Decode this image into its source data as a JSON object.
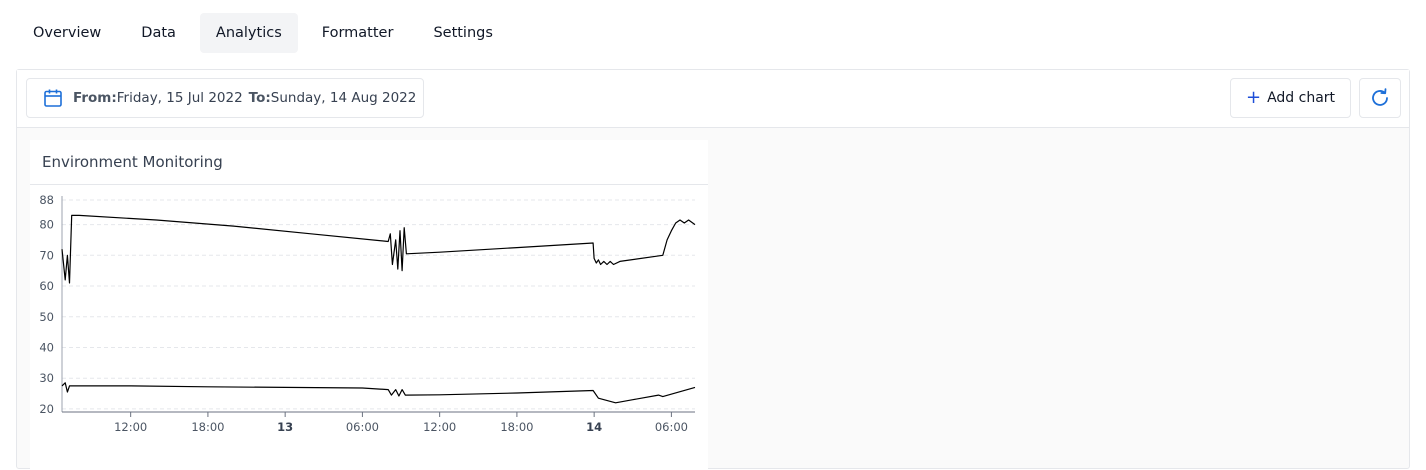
{
  "tabs": [
    {
      "label": "Overview",
      "active": false
    },
    {
      "label": "Data",
      "active": false
    },
    {
      "label": "Analytics",
      "active": true
    },
    {
      "label": "Formatter",
      "active": false
    },
    {
      "label": "Settings",
      "active": false
    }
  ],
  "toolbar": {
    "from_label": "From:",
    "from_value": "Friday, 15 Jul 2022",
    "to_label": "To:",
    "to_value": "Sunday, 14 Aug 2022",
    "add_chart_label": "Add chart",
    "calendar_icon": "calendar-icon",
    "refresh_icon": "refresh-icon",
    "accent_color": "#1d6fd8"
  },
  "chart_card": {
    "title": "Environment Monitoring"
  },
  "chart_data": {
    "type": "line",
    "title": "Environment Monitoring",
    "xlabel": "",
    "ylabel": "",
    "ylim": [
      19,
      88
    ],
    "yticks": [
      20,
      30,
      40,
      50,
      60,
      70,
      80,
      88
    ],
    "grid": true,
    "x_range": [
      "12 06:40",
      "14 07:50"
    ],
    "xticks": [
      {
        "label": "12:00",
        "t": "12 12:00",
        "bold": false
      },
      {
        "label": "18:00",
        "t": "12 18:00",
        "bold": false
      },
      {
        "label": "13",
        "t": "13 00:00",
        "bold": true
      },
      {
        "label": "06:00",
        "t": "13 06:00",
        "bold": false
      },
      {
        "label": "12:00",
        "t": "13 12:00",
        "bold": false
      },
      {
        "label": "18:00",
        "t": "13 18:00",
        "bold": false
      },
      {
        "label": "14",
        "t": "14 00:00",
        "bold": true
      },
      {
        "label": "06:00",
        "t": "14 06:00",
        "bold": false
      }
    ],
    "series": [
      {
        "color": "#000000",
        "points": [
          [
            "12 06:40",
            72
          ],
          [
            "12 06:55",
            62
          ],
          [
            "12 07:05",
            70
          ],
          [
            "12 07:15",
            61
          ],
          [
            "12 07:25",
            83
          ],
          [
            "12 08:00",
            83
          ],
          [
            "12 14:00",
            81.5
          ],
          [
            "12 20:00",
            79.5
          ],
          [
            "13 02:00",
            77
          ],
          [
            "13 08:00",
            74.5
          ],
          [
            "13 08:10",
            77
          ],
          [
            "13 08:20",
            67
          ],
          [
            "13 08:35",
            75
          ],
          [
            "13 08:45",
            65.5
          ],
          [
            "13 08:55",
            78
          ],
          [
            "13 09:05",
            65
          ],
          [
            "13 09:15",
            79
          ],
          [
            "13 09:25",
            70.5
          ],
          [
            "13 12:00",
            71
          ],
          [
            "13 18:00",
            72.5
          ],
          [
            "13 23:55",
            74
          ],
          [
            "14 00:00",
            69
          ],
          [
            "14 00:10",
            67.5
          ],
          [
            "14 00:20",
            68.5
          ],
          [
            "14 00:30",
            67
          ],
          [
            "14 00:45",
            68
          ],
          [
            "14 01:00",
            67
          ],
          [
            "14 01:15",
            68
          ],
          [
            "14 01:30",
            67
          ],
          [
            "14 02:00",
            68
          ],
          [
            "14 05:20",
            70
          ],
          [
            "14 05:40",
            75
          ],
          [
            "14 06:00",
            78
          ],
          [
            "14 06:20",
            80.5
          ],
          [
            "14 06:40",
            81.5
          ],
          [
            "14 07:00",
            80.5
          ],
          [
            "14 07:20",
            81.5
          ],
          [
            "14 07:50",
            80
          ]
        ]
      },
      {
        "color": "#000000",
        "points": [
          [
            "12 06:40",
            27.5
          ],
          [
            "12 06:55",
            28.5
          ],
          [
            "12 07:05",
            25.5
          ],
          [
            "12 07:15",
            27.5
          ],
          [
            "12 12:00",
            27.5
          ],
          [
            "12 18:00",
            27.2
          ],
          [
            "13 00:00",
            27
          ],
          [
            "13 06:00",
            26.8
          ],
          [
            "13 08:00",
            26.3
          ],
          [
            "13 08:15",
            24.5
          ],
          [
            "13 08:35",
            26.3
          ],
          [
            "13 08:50",
            24.2
          ],
          [
            "13 09:05",
            26.3
          ],
          [
            "13 09:20",
            24.5
          ],
          [
            "13 12:00",
            24.6
          ],
          [
            "13 18:00",
            25.2
          ],
          [
            "13 23:55",
            26
          ],
          [
            "14 00:20",
            23.5
          ],
          [
            "14 01:40",
            22
          ],
          [
            "14 03:00",
            23
          ],
          [
            "14 05:00",
            24.5
          ],
          [
            "14 05:20",
            24
          ],
          [
            "14 07:50",
            27
          ]
        ]
      }
    ]
  }
}
